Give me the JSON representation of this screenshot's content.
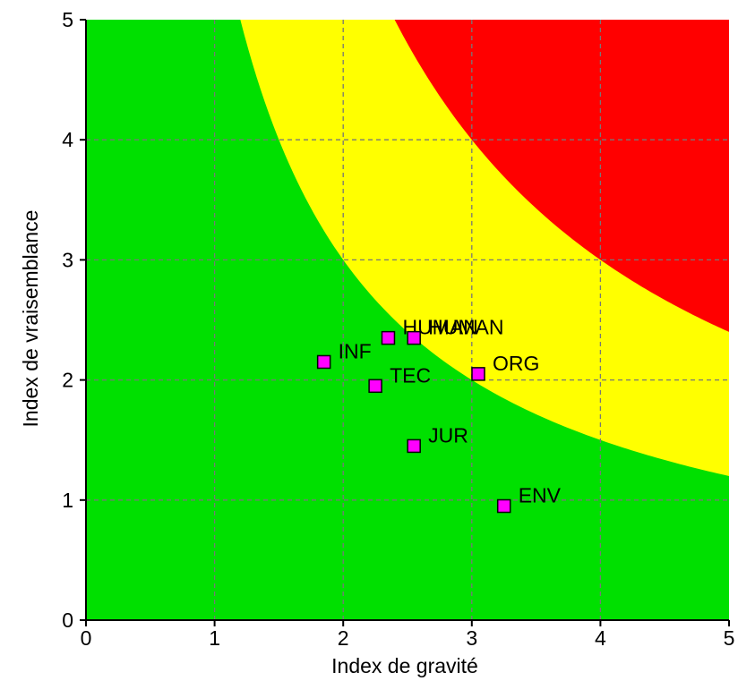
{
  "chart_data": {
    "type": "scatter",
    "title": "",
    "xlabel": "Index de gravité",
    "ylabel": "Index de vraisemblance",
    "xlim": [
      0,
      5
    ],
    "ylim": [
      0,
      5
    ],
    "xticks": [
      "0",
      "1",
      "2",
      "3",
      "4",
      "5"
    ],
    "yticks": [
      "0",
      "1",
      "2",
      "3",
      "4",
      "5"
    ],
    "grid": true,
    "background_zones": [
      {
        "color": "#00e000",
        "region": "x*y below 6"
      },
      {
        "color": "#ffff00",
        "region": "x*y from 6 to 12"
      },
      {
        "color": "#ff0000",
        "region": "x*y above 12"
      }
    ],
    "marker_color": "#ff00ff",
    "points": [
      {
        "label": "HUMAN",
        "x": 2.35,
        "y": 2.35
      },
      {
        "label": "HUMAN",
        "x": 2.55,
        "y": 2.35
      },
      {
        "label": "INF",
        "x": 1.85,
        "y": 2.15
      },
      {
        "label": "TEC",
        "x": 2.25,
        "y": 1.95
      },
      {
        "label": "ORG",
        "x": 3.05,
        "y": 2.05
      },
      {
        "label": "JUR",
        "x": 2.55,
        "y": 1.45
      },
      {
        "label": "ENV",
        "x": 3.25,
        "y": 0.95
      }
    ]
  }
}
